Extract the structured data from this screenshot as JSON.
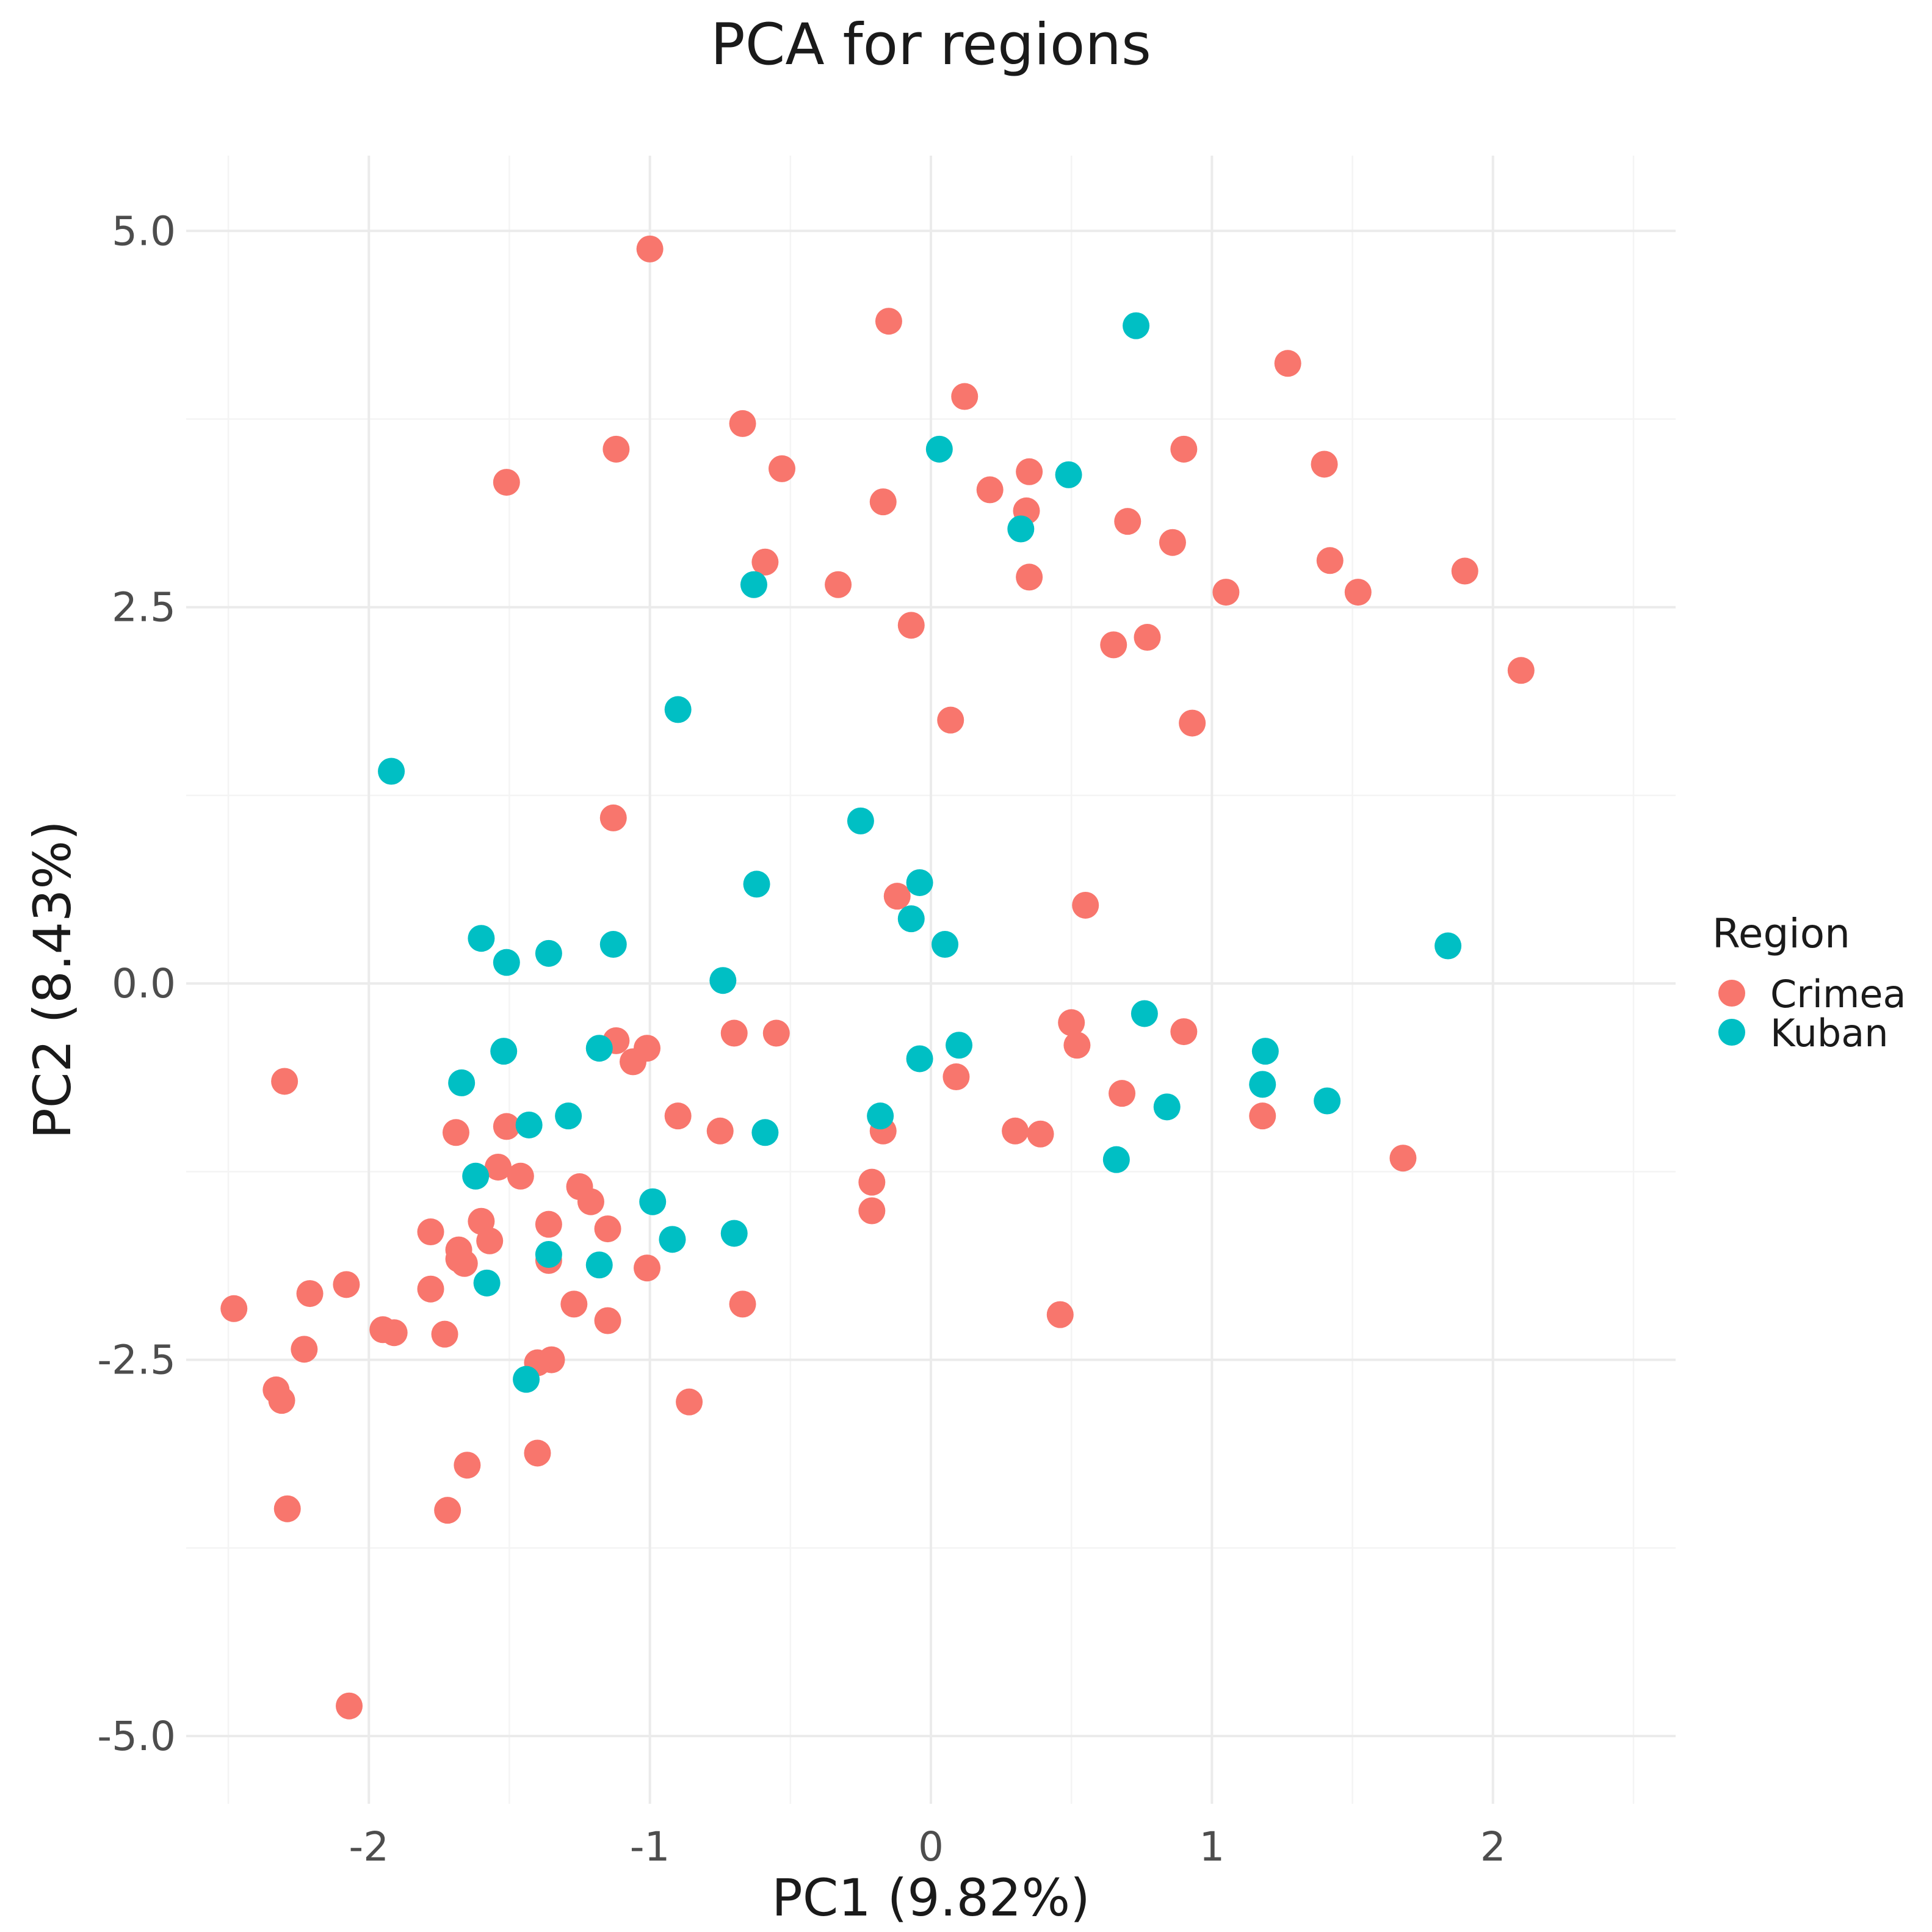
{
  "chart_data": {
    "type": "scatter",
    "title": "PCA for regions",
    "xlabel": "PC1 (9.82%)",
    "ylabel": "PC2 (8.43%)",
    "xlim": [
      -2.65,
      2.65
    ],
    "ylim": [
      -5.45,
      5.5
    ],
    "x_ticks": [
      -2,
      -1,
      0,
      1,
      2
    ],
    "x_tick_labels": [
      "-2",
      "-1",
      "0",
      "1",
      "2"
    ],
    "y_ticks": [
      -5,
      -2.5,
      0,
      2.5,
      5
    ],
    "y_tick_labels": [
      "-5.0",
      "-2.5",
      "0.0",
      "2.5",
      "5.0"
    ],
    "grid": true,
    "legend": {
      "title": "Region",
      "position": "right"
    },
    "series": [
      {
        "name": "Crimea",
        "color": "#F8766D",
        "points": [
          [
            -1.0,
            4.88
          ],
          [
            -0.15,
            4.4
          ],
          [
            0.12,
            3.9
          ],
          [
            1.27,
            4.12
          ],
          [
            -0.67,
            3.72
          ],
          [
            -1.12,
            3.55
          ],
          [
            -1.51,
            3.33
          ],
          [
            -0.53,
            3.42
          ],
          [
            0.21,
            3.28
          ],
          [
            0.35,
            3.4
          ],
          [
            0.34,
            3.14
          ],
          [
            0.9,
            3.55
          ],
          [
            1.4,
            3.45
          ],
          [
            -0.17,
            3.2
          ],
          [
            0.7,
            3.07
          ],
          [
            0.86,
            2.93
          ],
          [
            -0.59,
            2.8
          ],
          [
            -0.33,
            2.65
          ],
          [
            0.35,
            2.7
          ],
          [
            1.42,
            2.81
          ],
          [
            1.9,
            2.74
          ],
          [
            1.05,
            2.6
          ],
          [
            1.52,
            2.6
          ],
          [
            -0.07,
            2.38
          ],
          [
            0.65,
            2.25
          ],
          [
            0.77,
            2.3
          ],
          [
            2.1,
            2.08
          ],
          [
            0.07,
            1.75
          ],
          [
            0.93,
            1.73
          ],
          [
            -1.13,
            1.1
          ],
          [
            -0.12,
            0.58
          ],
          [
            0.55,
            0.52
          ],
          [
            -1.12,
            -0.38
          ],
          [
            -1.01,
            -0.43
          ],
          [
            -1.06,
            -0.52
          ],
          [
            -0.7,
            -0.33
          ],
          [
            -0.55,
            -0.33
          ],
          [
            0.5,
            -0.26
          ],
          [
            0.52,
            -0.41
          ],
          [
            0.9,
            -0.32
          ],
          [
            0.09,
            -0.62
          ],
          [
            0.68,
            -0.73
          ],
          [
            1.18,
            -0.88
          ],
          [
            1.68,
            -1.16
          ],
          [
            0.3,
            -0.98
          ],
          [
            0.39,
            -1.0
          ],
          [
            -0.17,
            -0.98
          ],
          [
            -0.9,
            -0.88
          ],
          [
            -0.75,
            -0.98
          ],
          [
            -1.69,
            -0.99
          ],
          [
            -1.51,
            -0.95
          ],
          [
            -2.3,
            -0.65
          ],
          [
            -1.54,
            -1.22
          ],
          [
            -1.46,
            -1.28
          ],
          [
            -1.25,
            -1.35
          ],
          [
            -1.21,
            -1.45
          ],
          [
            -0.21,
            -1.32
          ],
          [
            -0.21,
            -1.51
          ],
          [
            -1.15,
            -1.63
          ],
          [
            -1.36,
            -1.6
          ],
          [
            -1.6,
            -1.58
          ],
          [
            -1.57,
            -1.71
          ],
          [
            -1.78,
            -1.65
          ],
          [
            -1.68,
            -1.77
          ],
          [
            -1.66,
            -1.86
          ],
          [
            -1.68,
            -1.83
          ],
          [
            -1.36,
            -1.84
          ],
          [
            -1.01,
            -1.89
          ],
          [
            -1.78,
            -2.03
          ],
          [
            -2.08,
            -2.0
          ],
          [
            -2.21,
            -2.06
          ],
          [
            -2.48,
            -2.16
          ],
          [
            -1.27,
            -2.13
          ],
          [
            -1.15,
            -2.24
          ],
          [
            -0.67,
            -2.13
          ],
          [
            0.46,
            -2.2
          ],
          [
            -1.95,
            -2.3
          ],
          [
            -1.91,
            -2.32
          ],
          [
            -1.73,
            -2.33
          ],
          [
            -2.23,
            -2.43
          ],
          [
            -1.35,
            -2.5
          ],
          [
            -1.4,
            -2.52
          ],
          [
            -2.33,
            -2.7
          ],
          [
            -2.31,
            -2.77
          ],
          [
            -0.86,
            -2.78
          ],
          [
            -1.4,
            -3.12
          ],
          [
            -1.65,
            -3.2
          ],
          [
            -2.29,
            -3.49
          ],
          [
            -1.72,
            -3.5
          ],
          [
            -2.07,
            -4.8
          ]
        ]
      },
      {
        "name": "Kuban",
        "color": "#00BFC4",
        "points": [
          [
            0.73,
            4.37
          ],
          [
            0.03,
            3.55
          ],
          [
            0.49,
            3.38
          ],
          [
            0.32,
            3.02
          ],
          [
            -0.63,
            2.65
          ],
          [
            -0.9,
            1.82
          ],
          [
            -1.92,
            1.41
          ],
          [
            -0.25,
            1.08
          ],
          [
            -0.62,
            0.66
          ],
          [
            -0.04,
            0.67
          ],
          [
            -0.07,
            0.43
          ],
          [
            0.05,
            0.26
          ],
          [
            1.84,
            0.25
          ],
          [
            -1.6,
            0.3
          ],
          [
            -1.51,
            0.14
          ],
          [
            -1.36,
            0.2
          ],
          [
            -1.13,
            0.26
          ],
          [
            -0.74,
            0.02
          ],
          [
            0.76,
            -0.2
          ],
          [
            -1.52,
            -0.45
          ],
          [
            -1.18,
            -0.43
          ],
          [
            -0.04,
            -0.5
          ],
          [
            0.1,
            -0.41
          ],
          [
            1.19,
            -0.45
          ],
          [
            1.18,
            -0.67
          ],
          [
            1.41,
            -0.78
          ],
          [
            0.84,
            -0.82
          ],
          [
            -1.67,
            -0.66
          ],
          [
            -1.43,
            -0.94
          ],
          [
            -1.29,
            -0.88
          ],
          [
            -0.59,
            -0.99
          ],
          [
            -0.18,
            -0.88
          ],
          [
            0.66,
            -1.17
          ],
          [
            -1.62,
            -1.28
          ],
          [
            -0.99,
            -1.45
          ],
          [
            -0.92,
            -1.7
          ],
          [
            -0.7,
            -1.66
          ],
          [
            -1.36,
            -1.8
          ],
          [
            -1.18,
            -1.87
          ],
          [
            -1.58,
            -1.99
          ],
          [
            -1.44,
            -2.63
          ]
        ]
      }
    ]
  }
}
